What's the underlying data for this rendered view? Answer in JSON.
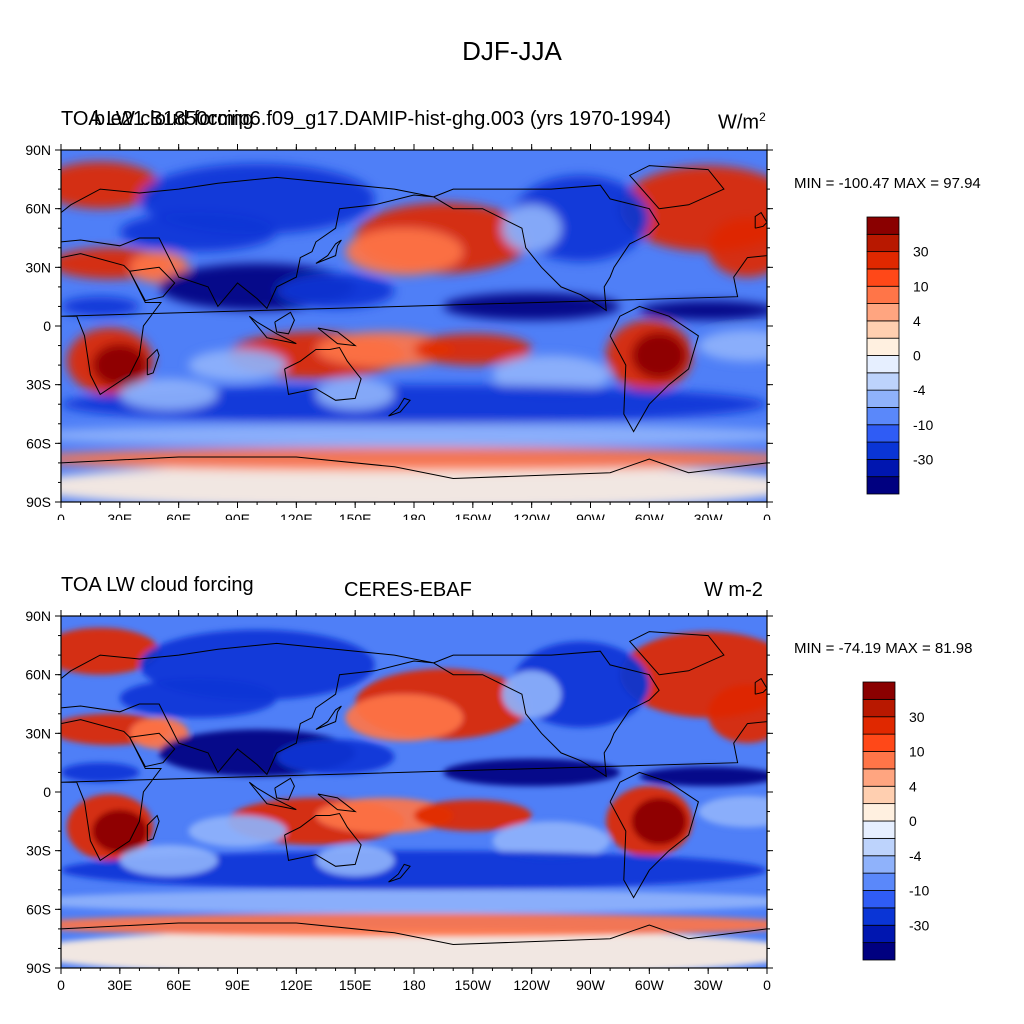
{
  "title": "DJF-JJA",
  "panels": [
    {
      "left_title": "TOA LW cloud forcing",
      "center_title": "b.e21.B1850cmip6.f09_g17.DAMIP-hist-ghg.003 (yrs 1970-1994)",
      "units": "W/m",
      "units_sup": "2",
      "minmax": "MIN = -100.47 MAX =  97.94"
    },
    {
      "left_title": "TOA LW cloud forcing",
      "center_title": "CERES-EBAF",
      "units": "W m-2",
      "units_sup": "",
      "minmax": "MIN = -74.19 MAX =  81.98"
    }
  ],
  "lat_labels": [
    "90N",
    "60N",
    "30N",
    "0",
    "30S",
    "60S",
    "90S"
  ],
  "lon_labels": [
    "0",
    "30E",
    "60E",
    "90E",
    "120E",
    "150E",
    "180",
    "150W",
    "120W",
    "90W",
    "60W",
    "30W",
    "0"
  ],
  "colorbar": {
    "colors": [
      "#000080",
      "#0016b0",
      "#0a35d6",
      "#2f5cf5",
      "#5a88fa",
      "#8fb2fb",
      "#bdd3fc",
      "#e6efff",
      "#fff0e0",
      "#ffcfb0",
      "#ffa580",
      "#ff7548",
      "#ff4818",
      "#e02800",
      "#b81800",
      "#8a0000"
    ],
    "tick_labels": [
      "30",
      "10",
      "4",
      "0",
      "-4",
      "-10",
      "-30"
    ]
  },
  "map_colors": {
    "ocean_base": "#4f7ff7",
    "strong_blue": "#0a35d6",
    "deep_blue": "#000080",
    "light_blue": "#8fb2fb",
    "pale": "#fff0e0",
    "orange": "#ff7548",
    "red": "#e02800",
    "dark_red": "#8a0000",
    "peach": "#ffcfb0"
  }
}
